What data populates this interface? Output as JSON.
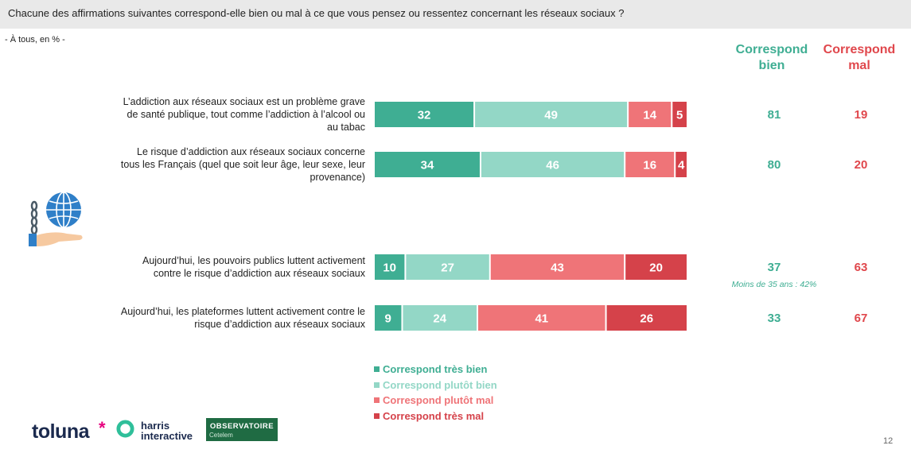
{
  "header": {
    "question": "Chacune des affirmations suivantes correspond-elle bien ou mal à ce que vous pensez ou ressentez concernant les réseaux sociaux ?",
    "base": "- À tous, en % -"
  },
  "columns": {
    "good": "Correspond bien",
    "bad": "Correspond mal"
  },
  "colors": {
    "tres_bien": "#3fae93",
    "plutot_bien": "#93d7c6",
    "plutot_mal": "#ef7478",
    "tres_mal": "#d5424a",
    "good_text": "#3fae93",
    "bad_text": "#e0474c"
  },
  "chart_data": {
    "type": "bar",
    "orientation": "horizontal",
    "stacked": true,
    "categories": [
      "L’addiction aux réseaux sociaux est un problème grave de santé publique, tout comme l’addiction à l’alcool ou au tabac",
      "Le risque d’addiction aux réseaux sociaux concerne tous les Français (quel que soit leur âge, leur sexe, leur provenance)",
      "Aujourd’hui, les pouvoirs publics luttent activement contre le risque d’addiction aux réseaux sociaux",
      "Aujourd’hui, les plateformes luttent activement contre le risque d’addiction aux réseaux sociaux"
    ],
    "category_lines": [
      [
        "L’addiction aux réseaux sociaux est un problème grave",
        "de santé publique, tout comme l’addiction à l’alcool ou",
        "au tabac"
      ],
      [
        "Le risque d’addiction aux réseaux sociaux concerne",
        "tous les Français (quel que soit leur âge, leur sexe, leur",
        "provenance)"
      ],
      [
        "Aujourd’hui, les pouvoirs publics luttent activement",
        "contre le risque d’addiction aux réseaux sociaux"
      ],
      [
        "Aujourd’hui, les plateformes luttent activement contre le",
        "risque d’addiction aux réseaux sociaux"
      ]
    ],
    "series": [
      {
        "name": "Correspond très bien",
        "values": [
          32,
          34,
          10,
          9
        ]
      },
      {
        "name": "Correspond plutôt bien",
        "values": [
          49,
          46,
          27,
          24
        ]
      },
      {
        "name": "Correspond plutôt mal",
        "values": [
          14,
          16,
          43,
          41
        ]
      },
      {
        "name": "Correspond très mal",
        "values": [
          5,
          4,
          20,
          26
        ]
      }
    ],
    "totals_good": [
      81,
      80,
      37,
      33
    ],
    "totals_bad": [
      19,
      20,
      63,
      67
    ],
    "notes": [
      "",
      "",
      "Moins de 35 ans : 42%",
      ""
    ],
    "xlim": [
      0,
      100
    ],
    "legend_position": "bottom-center"
  },
  "logos": {
    "toluna": "toluna",
    "harris": "harris interactive",
    "observatoire_title": "OBSERVATOIRE",
    "observatoire_sub": "Cetelem"
  },
  "page_number": "12"
}
